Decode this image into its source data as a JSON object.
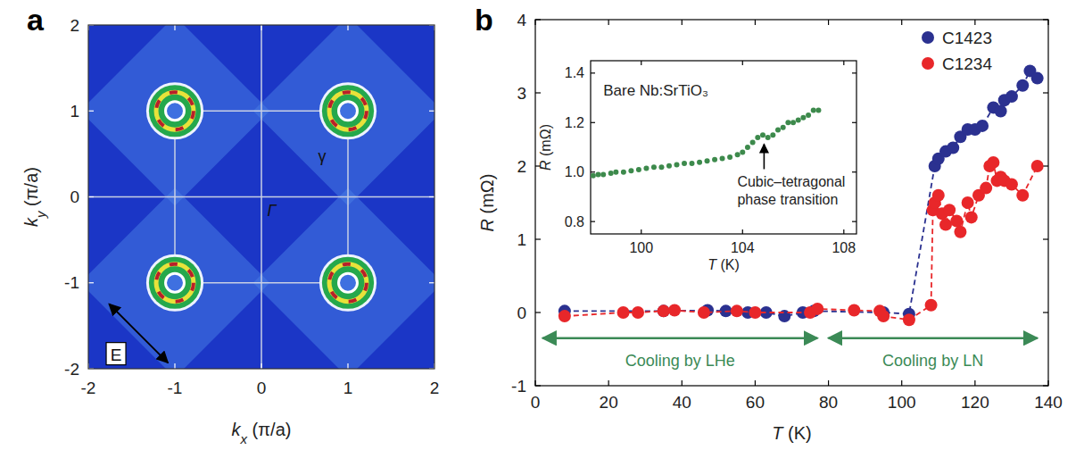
{
  "chart_data": [
    {
      "type": "image",
      "title": "a",
      "xlabel": "kx (π/a)",
      "ylabel": "ky (π/a)",
      "xlim": [
        -2,
        2
      ],
      "ylim": [
        -2,
        2
      ],
      "xticks": [
        -2,
        -1,
        0,
        1,
        2
      ],
      "yticks": [
        -2,
        -1,
        0,
        1,
        2
      ],
      "x": [
        -1,
        1,
        -1,
        1
      ],
      "values": [
        1,
        1,
        -1,
        -1
      ],
      "marker": "ring",
      "annotations": [
        {
          "text": "Γ",
          "x": 0.12,
          "y": -0.15
        },
        {
          "text": "γ",
          "x": 0.7,
          "y": 0.48
        },
        {
          "text": "E",
          "x": -1.68,
          "y": -1.83
        }
      ]
    },
    {
      "type": "line",
      "title": "b",
      "xlabel": "T (K)",
      "ylabel": "R (mΩ)",
      "xlim": [
        0,
        140
      ],
      "ylim": [
        -1,
        4
      ],
      "xticks": [
        0,
        20,
        40,
        60,
        80,
        100,
        120,
        140
      ],
      "yticks": [
        -1,
        0,
        1,
        2,
        3,
        4
      ],
      "legend": "top-right",
      "series": [
        {
          "name": "C1423",
          "color": "#2b3190",
          "marker": "circle",
          "line_style": "dashed",
          "x": [
            8,
            35,
            47,
            52,
            58,
            63,
            68,
            73,
            76,
            95,
            102,
            109,
            110,
            112,
            114,
            116,
            118,
            120,
            122,
            125,
            127,
            128,
            130,
            133,
            135,
            137
          ],
          "values": [
            0.02,
            0.02,
            0.03,
            0.02,
            0,
            0,
            -0.05,
            0,
            0.02,
            0,
            -0.02,
            2.0,
            2.1,
            2.2,
            2.25,
            2.4,
            2.5,
            2.5,
            2.55,
            2.8,
            2.75,
            2.9,
            2.95,
            3.1,
            3.3,
            3.2
          ]
        },
        {
          "name": "C1234",
          "color": "#e8272a",
          "marker": "circle",
          "line_style": "dashed",
          "x": [
            8,
            24,
            28,
            35,
            38,
            46,
            55,
            60,
            75,
            77,
            87,
            94,
            95,
            102,
            108,
            108.5,
            109,
            110,
            111,
            112,
            113,
            115,
            116,
            118,
            119,
            121,
            123,
            124,
            125,
            126,
            127,
            128,
            130,
            133,
            137
          ],
          "values": [
            -0.05,
            0,
            0,
            0.02,
            0.03,
            0,
            0.02,
            0,
            0,
            0.05,
            0.03,
            0.02,
            -0.05,
            -0.1,
            0.1,
            1.4,
            1.5,
            1.6,
            1.35,
            1.2,
            1.4,
            1.25,
            1.1,
            1.5,
            1.3,
            1.6,
            1.7,
            2.0,
            2.05,
            1.8,
            1.85,
            1.8,
            1.75,
            1.6,
            2.0
          ]
        }
      ],
      "annotations": [
        {
          "text": "Cooling by LHe",
          "x": [
            2,
            77
          ],
          "y": -0.35
        },
        {
          "text": "Cooling by LN",
          "x": [
            80,
            137
          ],
          "y": -0.35
        }
      ]
    },
    {
      "type": "scatter",
      "xlabel": "T (K)",
      "ylabel": "R (mΩ)",
      "xlim": [
        98,
        108.5
      ],
      "ylim": [
        0.75,
        1.45
      ],
      "xticks": [
        100,
        104,
        108
      ],
      "yticks": [
        0.8,
        {
          "value": 1,
          "label": "1.0"
        },
        1.2,
        1.4
      ],
      "series": [
        {
          "color": "#3d8a4c",
          "marker": "circle",
          "x": [
            98.1,
            98.3,
            98.5,
            98.8,
            99,
            99.3,
            99.6,
            99.9,
            100.2,
            100.5,
            100.8,
            101.1,
            101.4,
            101.7,
            102,
            102.3,
            102.6,
            102.9,
            103.2,
            103.5,
            103.8,
            104,
            104.2,
            104.4,
            104.6,
            104.8,
            105,
            105.2,
            105.4,
            105.6,
            105.8,
            106,
            106.2,
            106.4,
            106.6,
            106.8,
            107
          ],
          "values": [
            0.985,
            0.99,
            0.99,
            0.995,
            1,
            1,
            1.005,
            1.01,
            1.015,
            1.02,
            1.02,
            1.025,
            1.03,
            1.035,
            1.035,
            1.04,
            1.045,
            1.05,
            1.055,
            1.06,
            1.07,
            1.08,
            1.1,
            1.12,
            1.14,
            1.15,
            1.14,
            1.15,
            1.17,
            1.18,
            1.2,
            1.2,
            1.21,
            1.22,
            1.23,
            1.25,
            1.25
          ]
        }
      ],
      "annotations": [
        {
          "text": "Bare Nb:SrTiO₃",
          "x": 98.5,
          "y": 1.33
        },
        {
          "text": "Cubic–tetragonal phase transition",
          "x": 104.85,
          "y": 1.12
        }
      ]
    }
  ]
}
